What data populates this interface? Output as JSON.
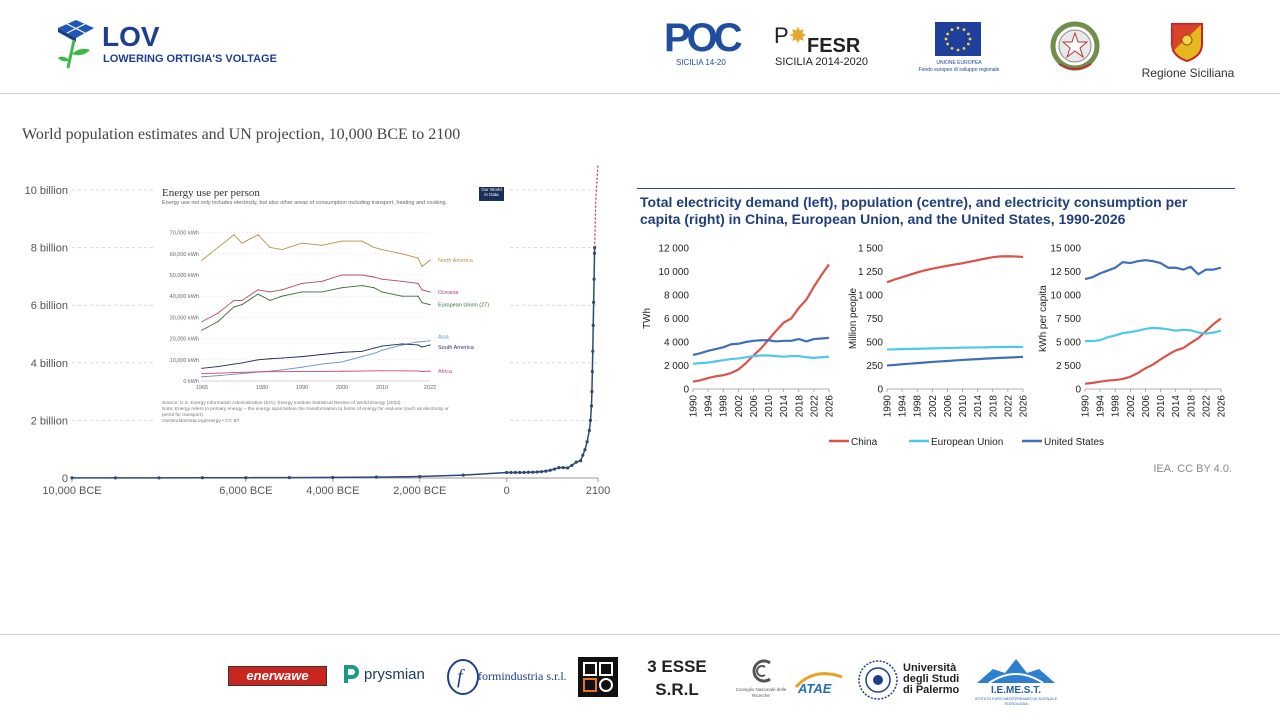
{
  "header": {
    "brand": {
      "name": "LOV",
      "tagline": "LOWERING ORTIGIA'S VOLTAGE"
    },
    "logos": {
      "poc": {
        "name": "POC",
        "sub": "SICILIA 14-20"
      },
      "fesr": {
        "name": "FESR",
        "sub": "SICILIA 2014-2020"
      },
      "eu": {
        "line1": "UNIONE EUROPEA",
        "line2": "Fondo europeo di sviluppo regionale"
      },
      "region": "Regione Siciliana"
    }
  },
  "footer": {
    "partners": {
      "enerwawe": "enerwawe",
      "prysmian": "prysmian",
      "formindustria": "formindustria s.r.l.",
      "three_esse_1": "3 ESSE",
      "three_esse_2": "S.R.L",
      "cnr": "Consiglio Nazionale delle Ricerche",
      "unipa_1": "Università",
      "unipa_2": "degli Studi",
      "unipa_3": "di Palermo",
      "iemest": "I.E.ME.S.T.",
      "iemest_sub": "ISTITUTO EURO MEDITERRANEO DI SCIENZA E TECNOLOGIA"
    }
  },
  "population": {
    "caption": "World population estimates and UN projection, 10,000 BCE to 2100",
    "chart_data": {
      "type": "line",
      "title": "",
      "y_ticks": [
        "10 billion",
        "8 billion",
        "6 billion",
        "4 billion",
        "2 billion",
        "0"
      ],
      "x_ticks": [
        "10,000 BCE",
        "6,000 BCE",
        "4,000 BCE",
        "2,000 BCE",
        "0",
        "2100"
      ],
      "x_tick_values": [
        -10000,
        -6000,
        -4000,
        -2000,
        0,
        2100
      ],
      "y_tick_values": [
        10,
        8,
        6,
        4,
        2,
        0
      ],
      "ylim_billion": [
        0,
        10
      ],
      "xlim": [
        -10000,
        2100
      ],
      "x": [
        -10000,
        -9000,
        -8000,
        -7000,
        -6000,
        -5000,
        -4000,
        -3000,
        -2000,
        -1000,
        0,
        100,
        200,
        300,
        400,
        500,
        600,
        700,
        800,
        900,
        1000,
        1100,
        1200,
        1300,
        1400,
        1500,
        1600,
        1700,
        1750,
        1800,
        1850,
        1900,
        1927,
        1950,
        1960,
        1970,
        1980,
        1990,
        2000,
        2010,
        2020,
        2023
      ],
      "y": [
        0.004,
        0.005,
        0.006,
        0.008,
        0.01,
        0.015,
        0.02,
        0.03,
        0.05,
        0.1,
        0.19,
        0.19,
        0.19,
        0.19,
        0.19,
        0.2,
        0.2,
        0.21,
        0.22,
        0.24,
        0.27,
        0.31,
        0.36,
        0.36,
        0.35,
        0.44,
        0.55,
        0.6,
        0.79,
        0.98,
        1.26,
        1.65,
        2.0,
        2.5,
        3.0,
        3.7,
        4.4,
        5.3,
        6.1,
        6.9,
        7.8,
        8.0
      ],
      "projection": {
        "x": [
          2023,
          2050,
          2100
        ],
        "y": [
          8.0,
          9.7,
          10.9
        ]
      }
    }
  },
  "energy_inset": {
    "chart_data": {
      "type": "line",
      "title": "Energy use per person",
      "subtitle": "Energy use not only includes electricity, but also other areas of consumption including transport, heating and cooking.",
      "logo": "Our World in Data",
      "y_ticks": [
        "70,000 kWh",
        "60,000 kWh",
        "50,000 kWh",
        "40,000 kWh",
        "30,000 kWh",
        "20,000 kWh",
        "10,000 kWh",
        "0 kWh"
      ],
      "y_tick_values": [
        70000,
        60000,
        50000,
        40000,
        30000,
        20000,
        10000,
        0
      ],
      "x_ticks": [
        "1965",
        "1980",
        "1990",
        "2000",
        "2010",
        "2022"
      ],
      "x_tick_values": [
        1965,
        1980,
        1990,
        2000,
        2010,
        2022
      ],
      "xlim": [
        1965,
        2022
      ],
      "ylim": [
        0,
        75000
      ],
      "years": [
        1965,
        1969,
        1973,
        1975,
        1979,
        1982,
        1985,
        1990,
        1995,
        2000,
        2005,
        2008,
        2010,
        2015,
        2019,
        2020,
        2022
      ],
      "series": [
        {
          "name": "North America",
          "color": "#b5944a",
          "values": [
            57000,
            63000,
            69000,
            65000,
            69000,
            63000,
            62000,
            65000,
            64000,
            66000,
            66000,
            63000,
            62000,
            60000,
            58000,
            54000,
            57000
          ]
        },
        {
          "name": "Oceania",
          "color": "#b24a6b",
          "values": [
            28000,
            32000,
            38000,
            38000,
            43000,
            42000,
            43000,
            46000,
            47000,
            50000,
            50000,
            49000,
            48000,
            47000,
            46000,
            43000,
            42000
          ]
        },
        {
          "name": "European Union (27)",
          "color": "#3b6d36",
          "values": [
            24000,
            28000,
            35000,
            36000,
            41000,
            38000,
            40000,
            42000,
            42000,
            44000,
            45000,
            44000,
            42000,
            40000,
            40000,
            37000,
            36000
          ]
        },
        {
          "name": "Asia",
          "color": "#6a8fc6",
          "values": [
            2000,
            2500,
            3200,
            3500,
            4200,
            4600,
            5200,
            6500,
            8000,
            9000,
            11500,
            13000,
            14500,
            17000,
            18500,
            18500,
            19000
          ]
        },
        {
          "name": "South America",
          "color": "#1c2f5e",
          "values": [
            6000,
            6800,
            8000,
            8500,
            10000,
            10500,
            10800,
            11500,
            12500,
            13500,
            14000,
            15500,
            16500,
            17500,
            17000,
            16000,
            17000
          ]
        },
        {
          "name": "Africa",
          "color": "#c94a7a",
          "values": [
            3500,
            3700,
            4000,
            4100,
            4300,
            4400,
            4400,
            4500,
            4500,
            4600,
            4700,
            4800,
            4800,
            4800,
            4700,
            4500,
            4600
          ]
        }
      ],
      "source": "Source: U.S. Energy Information Administration (EIA); Energy Institute Statistical Review of World Energy (2023)",
      "note": "Note: Energy refers to primary energy – the energy input before the transformation to forms of energy for end-use (such as electricity or petrol for transport).",
      "url": "OurWorldInData.org/energy • CC BY"
    }
  },
  "iea": {
    "title": "Total electricity demand (left), population (centre), and electricity consumption per capita (right) in China, European Union, and the United States, 1990-2026",
    "credit": "IEA. CC BY 4.0.",
    "years": [
      1990,
      1992,
      1994,
      1996,
      1998,
      2000,
      2002,
      2004,
      2006,
      2008,
      2010,
      2012,
      2014,
      2016,
      2018,
      2020,
      2022,
      2024,
      2026
    ],
    "x_ticks": [
      "1990",
      "1994",
      "1998",
      "2002",
      "2006",
      "2010",
      "2014",
      "2018",
      "2022",
      "2026"
    ],
    "x_tick_values": [
      1990,
      1994,
      1998,
      2002,
      2006,
      2010,
      2014,
      2018,
      2022,
      2026
    ],
    "legend": [
      {
        "name": "China",
        "color": "#d9534a"
      },
      {
        "name": "European Union",
        "color": "#4fc8e8"
      },
      {
        "name": "United States",
        "color": "#3f6fba"
      }
    ],
    "panels": [
      {
        "ylabel": "TWh",
        "ylim": [
          0,
          12000
        ],
        "y_ticks": [
          "12 000",
          "10 000",
          "8 000",
          "6 000",
          "4 000",
          "2 000",
          "0"
        ],
        "y_tick_values": [
          12000,
          10000,
          8000,
          6000,
          4000,
          2000,
          0
        ],
        "series": [
          {
            "name": "China",
            "color": "#d9534a",
            "values": [
              620,
              750,
              930,
              1080,
              1170,
              1350,
              1650,
              2200,
              2850,
              3450,
              4200,
              4950,
              5650,
              6000,
              6900,
              7600,
              8700,
              9700,
              10600
            ]
          },
          {
            "name": "European Union",
            "color": "#4fc8e8",
            "values": [
              2150,
              2200,
              2250,
              2350,
              2450,
              2550,
              2600,
              2700,
              2800,
              2850,
              2850,
              2800,
              2750,
              2800,
              2800,
              2700,
              2650,
              2700,
              2750
            ]
          },
          {
            "name": "United States",
            "color": "#3f6fba",
            "values": [
              2900,
              3050,
              3250,
              3400,
              3550,
              3800,
              3850,
              4000,
              4100,
              4150,
              4150,
              4050,
              4100,
              4100,
              4250,
              4050,
              4250,
              4300,
              4350
            ]
          }
        ]
      },
      {
        "ylabel": "Million people",
        "ylim": [
          0,
          1500
        ],
        "y_ticks": [
          "1 500",
          "1 250",
          "1 000",
          "750",
          "500",
          "250",
          "0"
        ],
        "y_tick_values": [
          1500,
          1250,
          1000,
          750,
          500,
          250,
          0
        ],
        "series": [
          {
            "name": "China",
            "color": "#d9534a",
            "values": [
              1135,
              1165,
              1190,
              1215,
              1240,
              1262,
              1280,
              1296,
              1311,
              1325,
              1338,
              1354,
              1371,
              1387,
              1402,
              1411,
              1412,
              1410,
              1405
            ]
          },
          {
            "name": "European Union",
            "color": "#4fc8e8",
            "values": [
              420,
              422,
              424,
              426,
              428,
              430,
              432,
              434,
              436,
              438,
              440,
              441,
              442,
              443,
              446,
              447,
              448,
              448,
              447
            ]
          },
          {
            "name": "United States",
            "color": "#3f6fba",
            "values": [
              250,
              256,
              263,
              269,
              275,
              282,
              288,
              293,
              298,
              304,
              309,
              314,
              318,
              323,
              327,
              331,
              334,
              338,
              342
            ]
          }
        ]
      },
      {
        "ylabel": "kWh per capita",
        "ylim": [
          0,
          15000
        ],
        "y_ticks": [
          "15 000",
          "12 500",
          "10 000",
          "7 500",
          "5 000",
          "2 500",
          "0"
        ],
        "y_tick_values": [
          15000,
          12500,
          10000,
          7500,
          5000,
          2500,
          0
        ],
        "series": [
          {
            "name": "China",
            "color": "#d9534a",
            "values": [
              550,
              650,
              780,
              900,
              950,
              1070,
              1300,
              1700,
              2200,
              2600,
              3150,
              3650,
              4100,
              4350,
              4900,
              5400,
              6150,
              6900,
              7500
            ]
          },
          {
            "name": "European Union",
            "color": "#4fc8e8",
            "values": [
              5100,
              5100,
              5200,
              5500,
              5700,
              5950,
              6050,
              6200,
              6400,
              6500,
              6450,
              6350,
              6200,
              6300,
              6250,
              6000,
              5900,
              6000,
              6200
            ]
          },
          {
            "name": "United States",
            "color": "#3f6fba",
            "values": [
              11700,
              11900,
              12300,
              12600,
              12900,
              13500,
              13400,
              13600,
              13700,
              13600,
              13400,
              12900,
              12900,
              12700,
              13000,
              12200,
              12700,
              12700,
              12900
            ]
          }
        ]
      }
    ]
  }
}
